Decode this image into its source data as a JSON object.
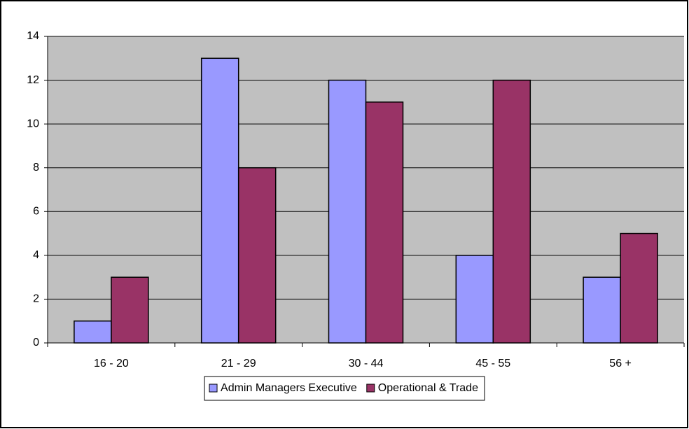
{
  "chart_data": {
    "type": "bar",
    "categories": [
      "16 - 20",
      "21 - 29",
      "30 - 44",
      "45 - 55",
      "56 +"
    ],
    "series": [
      {
        "name": "Admin Managers Executive",
        "color": "#9999ff",
        "values": [
          1,
          13,
          12,
          4,
          3
        ]
      },
      {
        "name": "Operational & Trade",
        "color": "#993366",
        "values": [
          3,
          8,
          11,
          12,
          5
        ]
      }
    ],
    "ylim": [
      0,
      14
    ],
    "yticks": [
      0,
      2,
      4,
      6,
      8,
      10,
      12,
      14
    ],
    "grid": true,
    "legend": "bottom"
  }
}
